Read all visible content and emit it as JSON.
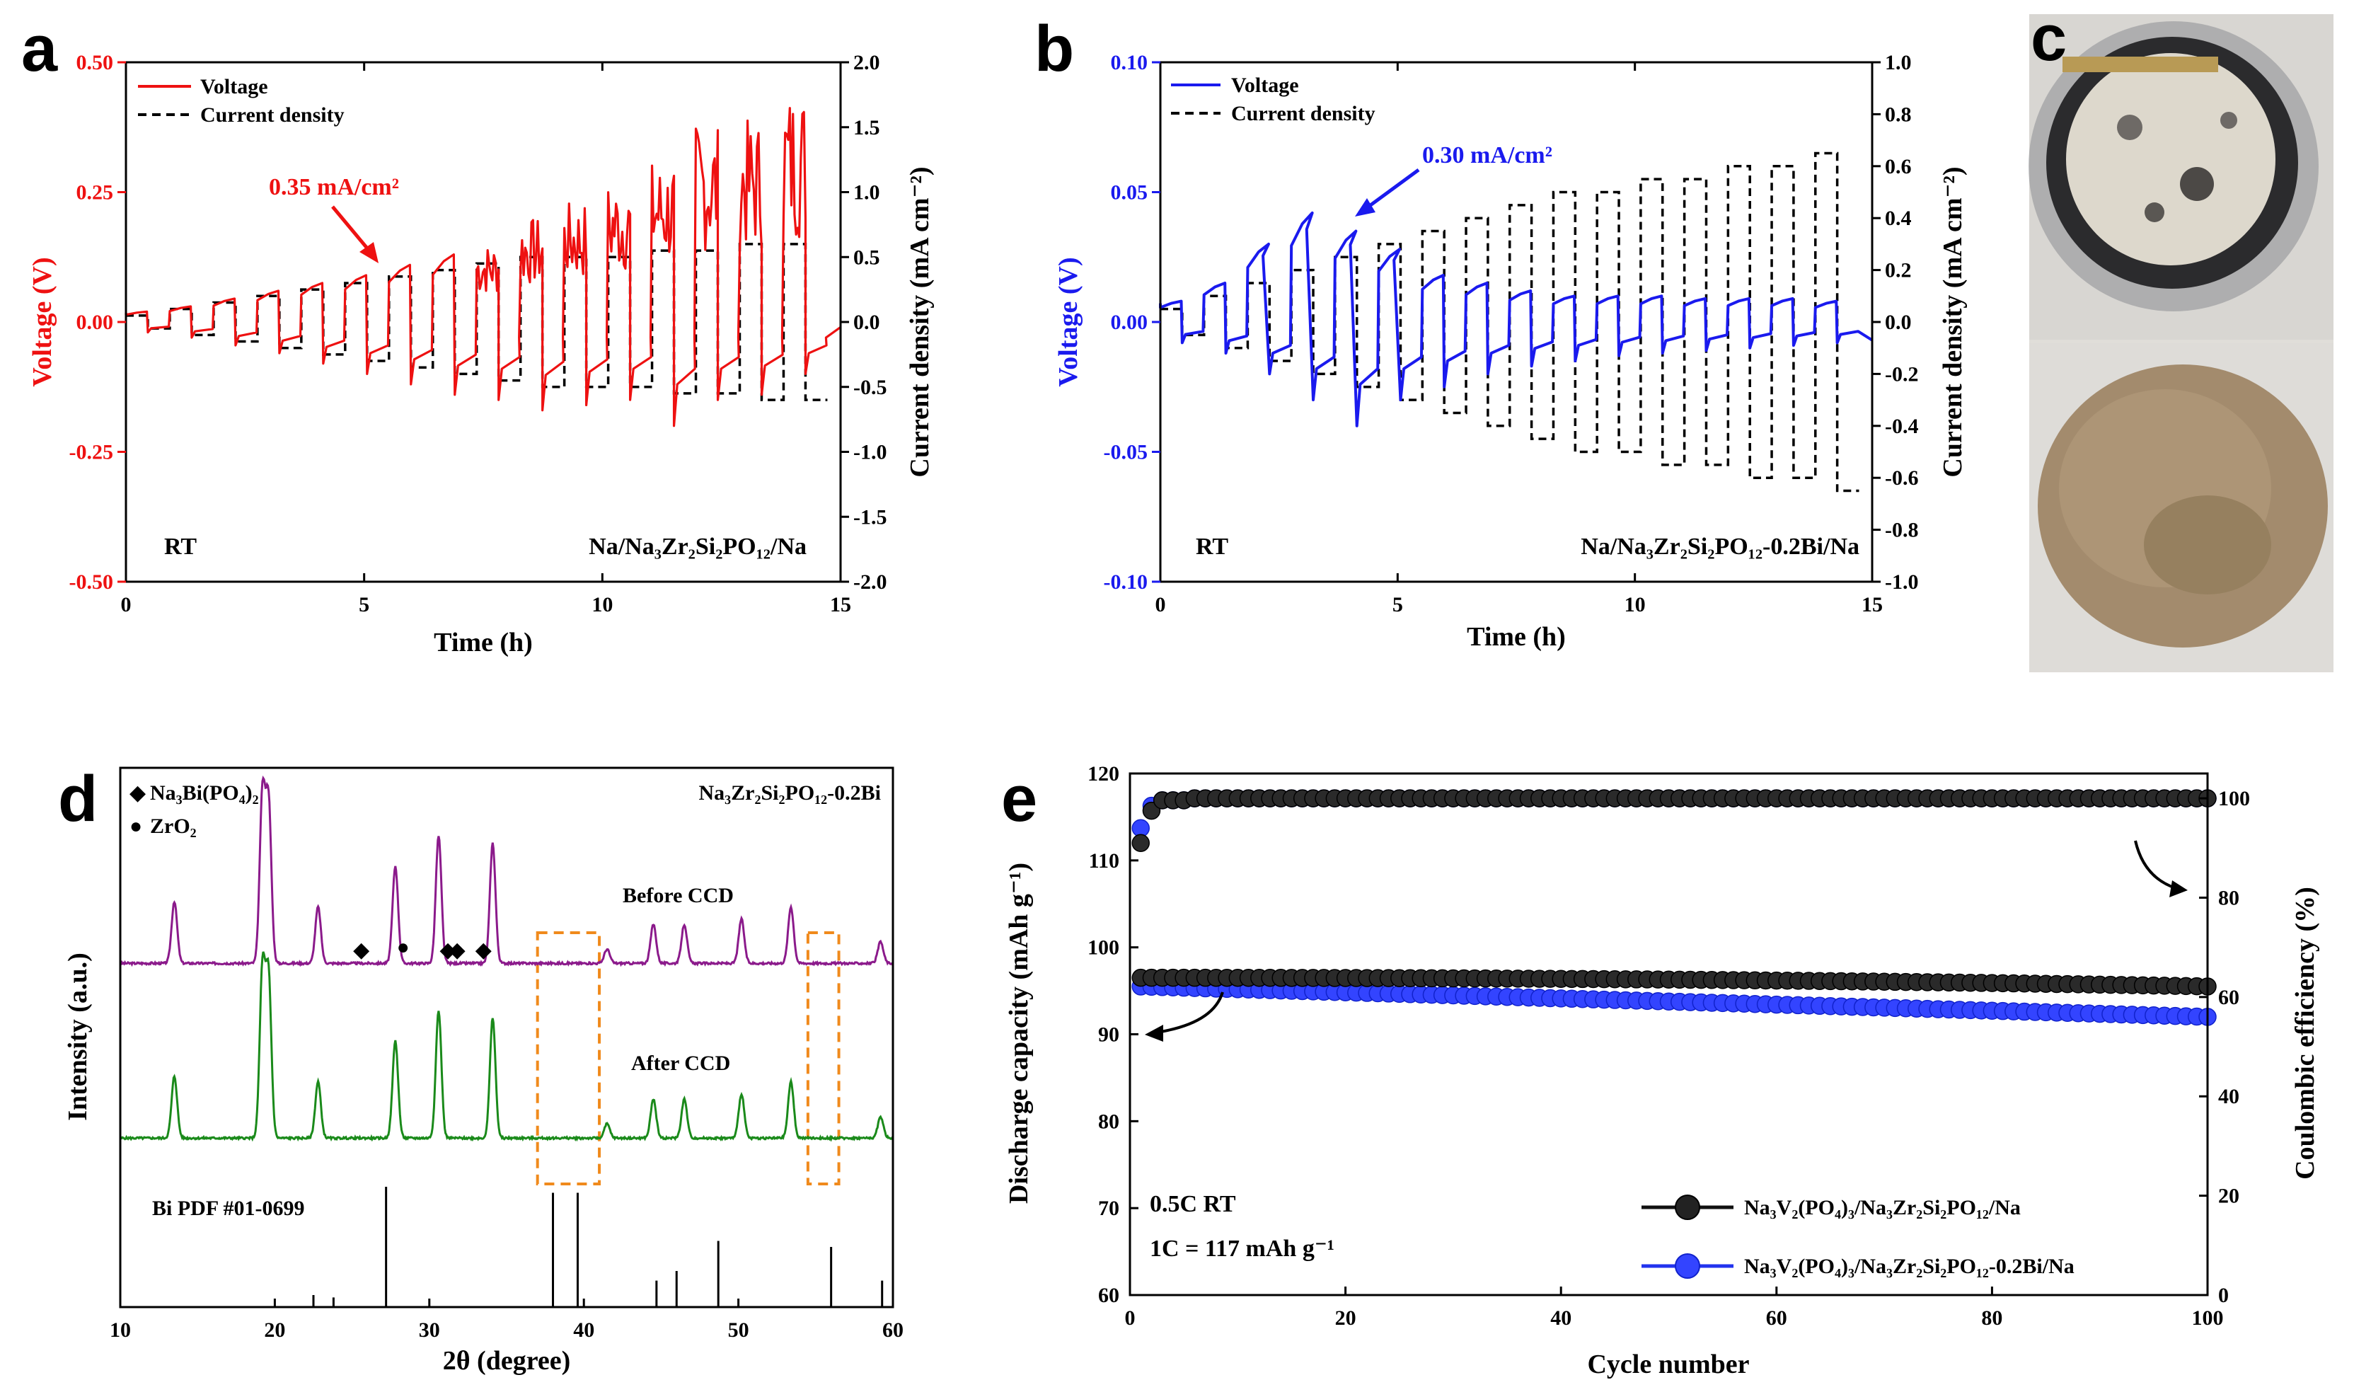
{
  "panels": {
    "a": {
      "label": "a"
    },
    "b": {
      "label": "b"
    },
    "c": {
      "label": "c"
    },
    "d": {
      "label": "d"
    },
    "e": {
      "label": "e"
    }
  },
  "chart_data": [
    {
      "id": "a",
      "type": "line",
      "xlabel": "Time (h)",
      "ylabel": "Voltage (V)",
      "y2label": "Current density (mA cm⁻²)",
      "xlim": [
        0,
        15
      ],
      "ylim": [
        -0.5,
        0.5
      ],
      "y2lim": [
        -2.0,
        2.0
      ],
      "xticks": [
        "0",
        "5",
        "10",
        "15"
      ],
      "yticks": [
        "-0.50",
        "-0.25",
        "0.00",
        "0.25",
        "0.50"
      ],
      "y2ticks": [
        "-2.0",
        "-1.5",
        "-1.0",
        "-0.5",
        "0.0",
        "0.5",
        "1.0",
        "1.5",
        "2.0"
      ],
      "legend": [
        "Voltage",
        "Current density"
      ],
      "annotation": "0.35 mA/cm²",
      "condition": "RT",
      "cell": "Na/Na₃Zr₂Si₂PO₁₂/Na",
      "voltage_color": "#ee1111",
      "current_color": "#000000",
      "current_steps_mA_cm2": [
        0.05,
        0.1,
        0.15,
        0.2,
        0.25,
        0.3,
        0.35,
        0.4,
        0.45,
        0.5,
        0.5,
        0.5,
        0.55,
        0.55,
        0.6,
        0.6
      ],
      "voltage_peaks_V": [
        0.02,
        0.03,
        0.045,
        0.06,
        0.075,
        0.09,
        0.11,
        0.13,
        0.15,
        0.2,
        0.23,
        0.27,
        0.31,
        0.38,
        0.39,
        0.45
      ],
      "voltage_troughs_V": [
        -0.02,
        -0.03,
        -0.045,
        -0.06,
        -0.08,
        -0.1,
        -0.12,
        -0.14,
        -0.15,
        -0.17,
        -0.16,
        -0.15,
        -0.2,
        -0.15,
        -0.14,
        -0.1
      ]
    },
    {
      "id": "b",
      "type": "line",
      "xlabel": "Time (h)",
      "ylabel": "Voltage (V)",
      "y2label": "Current density (mA cm⁻²)",
      "xlim": [
        0,
        15
      ],
      "ylim": [
        -0.1,
        0.1
      ],
      "y2lim": [
        -1.0,
        1.0
      ],
      "xticks": [
        "0",
        "5",
        "10",
        "15"
      ],
      "yticks": [
        "-0.10",
        "-0.05",
        "0.00",
        "0.05",
        "0.10"
      ],
      "y2ticks": [
        "-1.0",
        "-0.8",
        "-0.6",
        "-0.4",
        "-0.2",
        "0.0",
        "0.2",
        "0.4",
        "0.6",
        "0.8",
        "1.0"
      ],
      "legend": [
        "Voltage",
        "Current density"
      ],
      "annotation": "0.30 mA/cm²",
      "condition": "RT",
      "cell": "Na/Na₃Zr₂Si₂PO₁₂-0.2Bi/Na",
      "voltage_color": "#1a1aee",
      "current_color": "#000000",
      "current_steps_mA_cm2": [
        0.05,
        0.1,
        0.15,
        0.2,
        0.25,
        0.3,
        0.35,
        0.4,
        0.45,
        0.5,
        0.5,
        0.55,
        0.55,
        0.6,
        0.6,
        0.65
      ],
      "voltage_peaks_V": [
        0.008,
        0.015,
        0.03,
        0.042,
        0.035,
        0.028,
        0.018,
        0.015,
        0.012,
        0.01,
        0.01,
        0.01,
        0.009,
        0.009,
        0.009,
        0.008
      ],
      "voltage_troughs_V": [
        -0.008,
        -0.012,
        -0.02,
        -0.03,
        -0.04,
        -0.03,
        -0.025,
        -0.02,
        -0.017,
        -0.015,
        -0.013,
        -0.012,
        -0.011,
        -0.01,
        -0.009,
        -0.008
      ]
    },
    {
      "id": "d",
      "type": "line",
      "xlabel": "2θ (degree)",
      "ylabel": "Intensity (a.u.)",
      "xlim": [
        10,
        60
      ],
      "xticks": [
        "10",
        "20",
        "30",
        "40",
        "50",
        "60"
      ],
      "legend": [
        "Na₃Bi(PO₄)₂",
        "ZrO₂"
      ],
      "sample": "Na₃Zr₂Si₂PO₁₂-0.2Bi",
      "series": [
        {
          "name": "Before CCD",
          "color": "#8b1a8b"
        },
        {
          "name": "After CCD",
          "color": "#1a8a1a"
        }
      ],
      "peaks_2theta": [
        13.5,
        19.2,
        19.6,
        22.8,
        27.8,
        30.6,
        34.1,
        41.5,
        44.5,
        46.5,
        50.2,
        53.4,
        59.2
      ],
      "peak_heights": [
        0.35,
        0.95,
        0.9,
        0.32,
        0.55,
        0.72,
        0.68,
        0.08,
        0.22,
        0.22,
        0.25,
        0.32,
        0.12
      ],
      "markers_Na3BiPO4_2": [
        25.6,
        31.2,
        31.8,
        33.5
      ],
      "markers_ZrO2": [
        28.3
      ],
      "reference": "Bi  PDF #01-0699",
      "reference_lines": [
        [
          22.5,
          0.1
        ],
        [
          23.8,
          0.08
        ],
        [
          27.2,
          1.0
        ],
        [
          38.0,
          0.95
        ],
        [
          39.6,
          0.95
        ],
        [
          44.7,
          0.22
        ],
        [
          46.0,
          0.3
        ],
        [
          48.7,
          0.55
        ],
        [
          56.0,
          0.5
        ],
        [
          59.3,
          0.22
        ]
      ],
      "highlight_ranges": [
        [
          37.0,
          41.0
        ],
        [
          54.5,
          56.5
        ]
      ]
    },
    {
      "id": "e",
      "type": "scatter",
      "xlabel": "Cycle number",
      "ylabel": "Discharge capacity (mAh g⁻¹)",
      "y2label": "Coulombic efficiency (%)",
      "xlim": [
        0,
        100
      ],
      "ylim": [
        60,
        120
      ],
      "y2lim": [
        0,
        105
      ],
      "xticks": [
        "0",
        "20",
        "40",
        "60",
        "80",
        "100"
      ],
      "yticks": [
        "60",
        "70",
        "80",
        "90",
        "100",
        "110",
        "120"
      ],
      "y2ticks": [
        "0",
        "20",
        "40",
        "60",
        "80",
        "100"
      ],
      "conditions": [
        "0.5C  RT",
        "1C = 117 mAh g⁻¹"
      ],
      "series": [
        {
          "name": "Na₃V₂(PO₄)₃/Na₃Zr₂Si₂PO₁₂/Na",
          "color": "#111111",
          "capacity_start": 96.5,
          "capacity_end": 95.5,
          "ce": 100
        },
        {
          "name": "Na₃V₂(PO₄)₃/Na₃Zr₂Si₂PO₁₂-0.2Bi/Na",
          "color": "#2233ee",
          "capacity_start": 95.5,
          "capacity_end": 92.0,
          "ce": 100
        }
      ]
    }
  ]
}
